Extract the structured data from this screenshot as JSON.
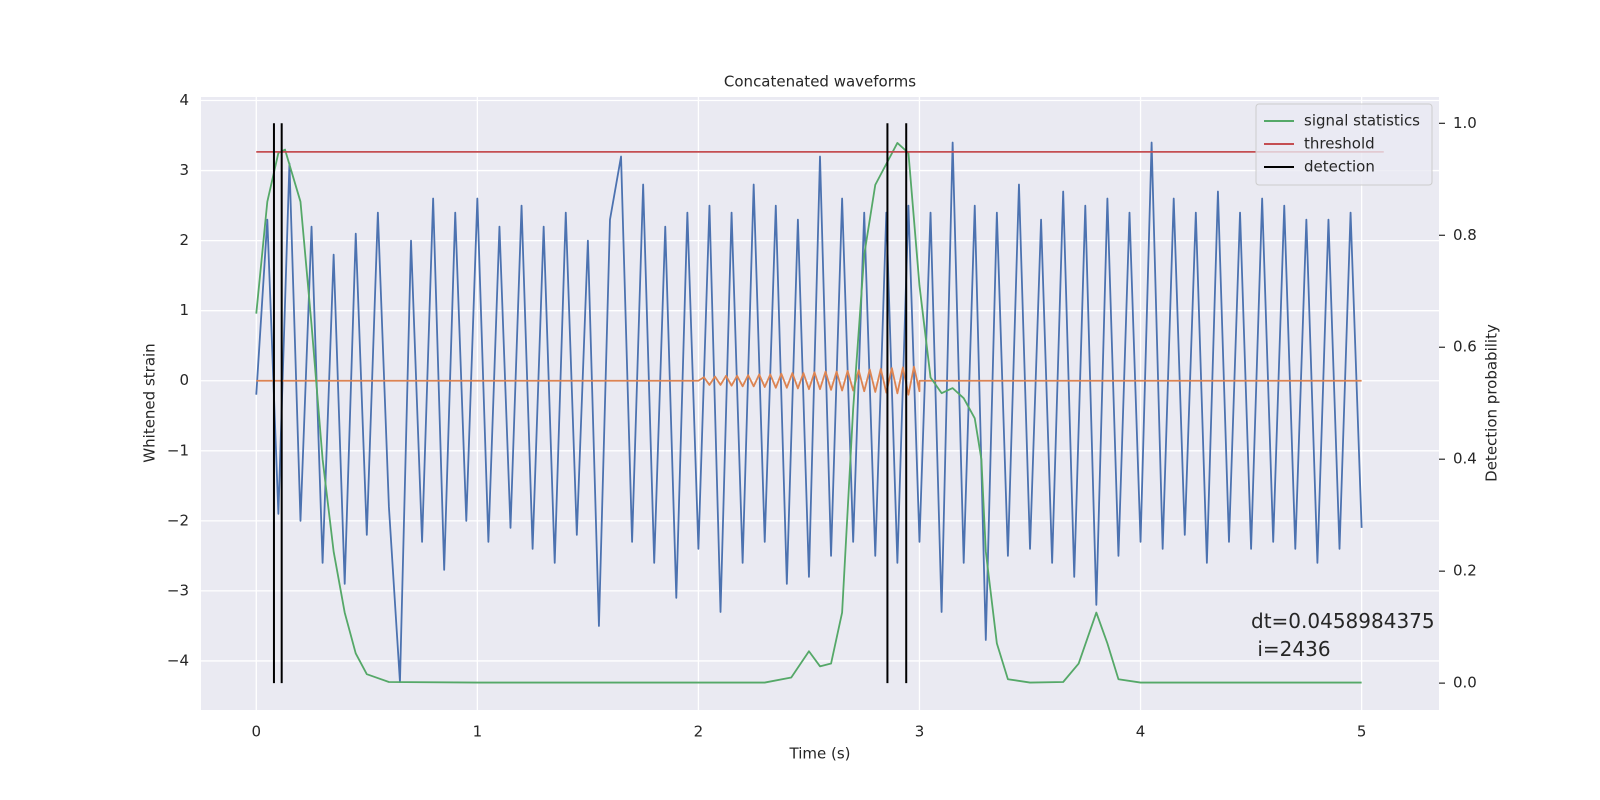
{
  "chart_data": {
    "type": "line",
    "title": "Concatenated waveforms",
    "xlabel": "Time (s)",
    "ylabel": "Whitened strain",
    "y2label": "Detection probability",
    "xlim": [
      -0.25,
      5.35
    ],
    "ylim": [
      -4.7,
      4.05
    ],
    "y2lim": [
      -0.048,
      1.047
    ],
    "xticks": [
      0,
      1,
      2,
      3,
      4,
      5
    ],
    "yticks": [
      {
        "value": -4,
        "label": "−4"
      },
      {
        "value": -3,
        "label": "−3"
      },
      {
        "value": -2,
        "label": "−2"
      },
      {
        "value": -1,
        "label": "−1"
      },
      0,
      1,
      2,
      3,
      4
    ],
    "y2ticks": [
      {
        "value": 0,
        "label": "0.0"
      },
      0.2,
      0.4,
      0.6,
      0.8,
      {
        "value": 1,
        "label": "1.0"
      }
    ],
    "grid": true,
    "legend": "upper right",
    "annotation": {
      "lines": [
        "dt=0.0458984375",
        " i=2436"
      ]
    },
    "series": [
      {
        "color": "#4c72b0",
        "x": [
          0,
          0.05,
          0.1,
          0.15,
          0.2,
          0.25,
          0.3,
          0.35,
          0.4,
          0.45,
          0.5,
          0.55,
          0.6,
          0.65,
          0.7,
          0.75,
          0.8,
          0.85,
          0.9,
          0.95,
          1.0,
          1.05,
          1.1,
          1.15,
          1.2,
          1.25,
          1.3,
          1.35,
          1.4,
          1.45,
          1.5,
          1.55,
          1.6,
          1.65,
          1.7,
          1.75,
          1.8,
          1.85,
          1.9,
          1.95,
          2.0,
          2.05,
          2.1,
          2.15,
          2.2,
          2.25,
          2.3,
          2.35,
          2.4,
          2.45,
          2.5,
          2.55,
          2.6,
          2.65,
          2.7,
          2.75,
          2.8,
          2.85,
          2.9,
          2.95,
          3.0,
          3.05,
          3.1,
          3.15,
          3.2,
          3.25,
          3.3,
          3.35,
          3.4,
          3.45,
          3.5,
          3.55,
          3.6,
          3.65,
          3.7,
          3.75,
          3.8,
          3.85,
          3.9,
          3.95,
          4.0,
          4.05,
          4.1,
          4.15,
          4.2,
          4.25,
          4.3,
          4.35,
          4.4,
          4.45,
          4.5,
          4.55,
          4.6,
          4.65,
          4.7,
          4.75,
          4.8,
          4.85,
          4.9,
          4.95,
          5.0
        ],
        "values": [
          -0.2,
          2.3,
          -1.9,
          3.1,
          -2.0,
          2.2,
          -2.6,
          1.8,
          -2.9,
          2.1,
          -2.2,
          2.4,
          -1.8,
          -4.3,
          2.0,
          -2.3,
          2.6,
          -2.7,
          2.4,
          -2.0,
          2.6,
          -2.3,
          2.2,
          -2.1,
          2.5,
          -2.4,
          2.2,
          -2.6,
          2.4,
          -2.2,
          2.0,
          -3.5,
          2.3,
          3.2,
          -2.3,
          2.8,
          -2.6,
          2.2,
          -3.1,
          2.4,
          -2.4,
          2.5,
          -3.3,
          2.4,
          -2.6,
          2.8,
          -2.3,
          2.5,
          -2.9,
          2.3,
          -2.8,
          3.2,
          -2.5,
          2.6,
          -2.3,
          2.4,
          -2.5,
          2.4,
          -2.6,
          2.5,
          -2.3,
          2.4,
          -3.3,
          3.4,
          -2.6,
          2.5,
          -3.7,
          2.4,
          -2.5,
          2.8,
          -2.4,
          2.3,
          -2.6,
          2.7,
          -2.8,
          2.5,
          -3.2,
          2.6,
          -2.5,
          2.4,
          -2.3,
          3.4,
          -2.4,
          2.6,
          -2.2,
          2.4,
          -2.6,
          2.7,
          -2.3,
          2.4,
          -2.4,
          2.6,
          -2.3,
          2.5,
          -2.4,
          2.3,
          -2.6,
          2.3,
          -2.4,
          2.4,
          -2.1
        ]
      },
      {
        "color": "#dd8452",
        "x": [
          0,
          2.0,
          2.025,
          2.05,
          2.075,
          2.1,
          2.125,
          2.15,
          2.175,
          2.2,
          2.225,
          2.25,
          2.275,
          2.3,
          2.325,
          2.35,
          2.375,
          2.4,
          2.425,
          2.45,
          2.475,
          2.5,
          2.525,
          2.55,
          2.575,
          2.6,
          2.625,
          2.65,
          2.675,
          2.7,
          2.725,
          2.75,
          2.775,
          2.8,
          2.825,
          2.85,
          2.875,
          2.9,
          2.925,
          2.95,
          2.975,
          3.0,
          3.0,
          5.0
        ],
        "values": [
          0,
          0,
          0.05,
          -0.06,
          0.06,
          -0.06,
          0.07,
          -0.07,
          0.07,
          -0.08,
          0.08,
          -0.08,
          0.09,
          -0.09,
          0.09,
          -0.1,
          0.1,
          -0.1,
          0.11,
          -0.11,
          0.11,
          -0.12,
          0.12,
          -0.12,
          0.13,
          -0.13,
          0.13,
          -0.14,
          0.14,
          -0.14,
          0.15,
          -0.15,
          0.16,
          -0.16,
          0.17,
          -0.17,
          0.18,
          -0.18,
          0.19,
          -0.2,
          0.2,
          -0.15,
          0,
          0
        ]
      },
      {
        "name": "signal statistics",
        "color": "#55a868",
        "axis": "y2",
        "x": [
          0,
          0.05,
          0.1,
          0.13,
          0.2,
          0.25,
          0.3,
          0.35,
          0.4,
          0.45,
          0.5,
          0.6,
          1.0,
          2.3,
          2.42,
          2.5,
          2.55,
          2.6,
          2.65,
          2.7,
          2.75,
          2.8,
          2.9,
          2.95,
          3.0,
          3.05,
          3.1,
          3.15,
          3.2,
          3.25,
          3.28,
          3.3,
          3.35,
          3.4,
          3.5,
          3.65,
          3.72,
          3.8,
          3.85,
          3.9,
          4.0,
          5.0
        ],
        "values": [
          0.66,
          0.86,
          0.947,
          0.953,
          0.86,
          0.64,
          0.4,
          0.235,
          0.126,
          0.053,
          0.016,
          0.002,
          0.001,
          0.001,
          0.01,
          0.057,
          0.03,
          0.035,
          0.126,
          0.49,
          0.765,
          0.89,
          0.965,
          0.947,
          0.71,
          0.546,
          0.518,
          0.527,
          0.509,
          0.473,
          0.4,
          0.235,
          0.071,
          0.007,
          0.001,
          0.002,
          0.035,
          0.126,
          0.071,
          0.007,
          0.001,
          0.001
        ]
      },
      {
        "name": "threshold",
        "color": "#c44e52",
        "axis": "y2",
        "x": [
          0,
          5.1
        ],
        "values": [
          0.949,
          0.949
        ]
      },
      {
        "name": "detection",
        "color": "#000000",
        "axis": "y2",
        "type": "vlines",
        "x": [
          0.08,
          0.115,
          2.855,
          2.94
        ],
        "ymin": 0,
        "ymax": 1
      }
    ]
  }
}
